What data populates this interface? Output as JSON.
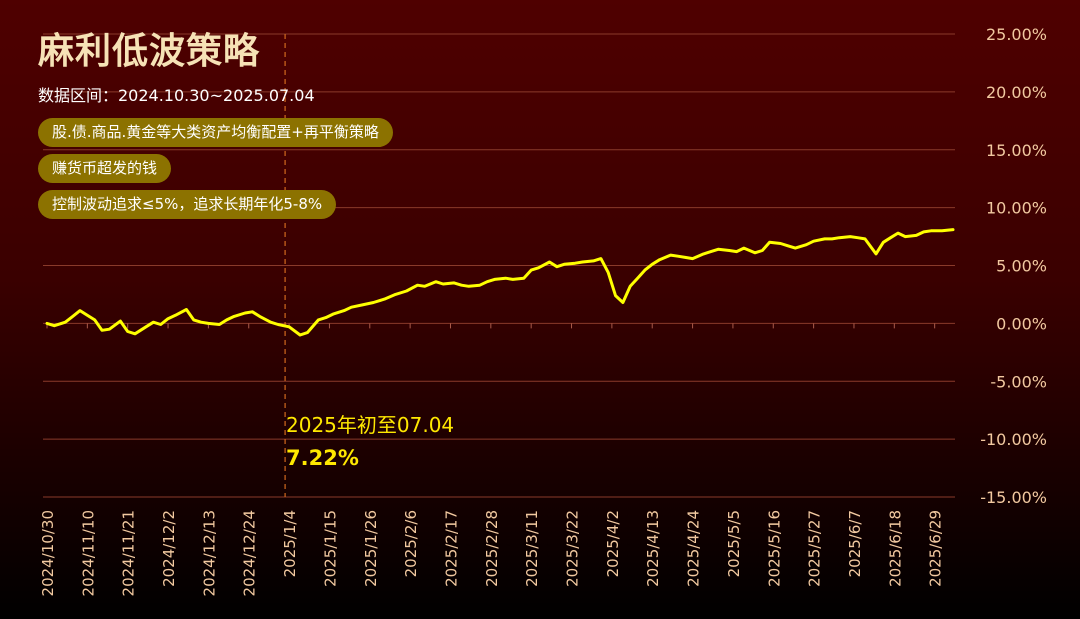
{
  "header": {
    "title": "麻利低波策略",
    "subtitle": "数据区间：2024.10.30~2025.07.04"
  },
  "tags": [
    "股.债.商品.黄金等大类资产均衡配置+再平衡策略",
    "赚货币超发的钱",
    "控制波动追求≤5%，追求长期年化5-8%"
  ],
  "annotation": {
    "label": "2025年初至07.04",
    "value": "7.22%",
    "marker_date": "2025/1/4"
  },
  "colors": {
    "line": "#ffff00",
    "axis_text": "#f2c9a0",
    "grid": "#8a3a2a",
    "annotation_line": "#d2691e",
    "tag_bg": "#8c7200"
  },
  "chart_data": {
    "type": "line",
    "series": [
      {
        "x": [
          "2024/10/30",
          "2024/11/1",
          "2024/11/4",
          "2024/11/6",
          "2024/11/8",
          "2024/11/10",
          "2024/11/12",
          "2024/11/14",
          "2024/11/16",
          "2024/11/19",
          "2024/11/21",
          "2024/11/23",
          "2024/11/26",
          "2024/11/28",
          "2024/11/30",
          "2024/12/2",
          "2024/12/4",
          "2024/12/7",
          "2024/12/9",
          "2024/12/11",
          "2024/12/13",
          "2024/12/16",
          "2024/12/18",
          "2024/12/20",
          "2024/12/23",
          "2024/12/25",
          "2024/12/27",
          "2024/12/30",
          "2025/1/1",
          "2025/1/4",
          "2025/1/7",
          "2025/1/9",
          "2025/1/12",
          "2025/1/14",
          "2025/1/16",
          "2025/1/19",
          "2025/1/21",
          "2025/1/24",
          "2025/1/27",
          "2025/1/30",
          "2025/2/2",
          "2025/2/5",
          "2025/2/8",
          "2025/2/10",
          "2025/2/13",
          "2025/2/15",
          "2025/2/18",
          "2025/2/20",
          "2025/2/22",
          "2025/2/25",
          "2025/2/27",
          "2025/3/1",
          "2025/3/4",
          "2025/3/6",
          "2025/3/9",
          "2025/3/11",
          "2025/3/13",
          "2025/3/16",
          "2025/3/18",
          "2025/3/20",
          "2025/3/23",
          "2025/3/25",
          "2025/3/28",
          "2025/3/30",
          "2025/4/1",
          "2025/4/3",
          "2025/4/5",
          "2025/4/7",
          "2025/4/9",
          "2025/4/11",
          "2025/4/13",
          "2025/4/15",
          "2025/4/18",
          "2025/4/20",
          "2025/4/22",
          "2025/4/24",
          "2025/4/27",
          "2025/4/29",
          "2025/5/1",
          "2025/5/4",
          "2025/5/6",
          "2025/5/8",
          "2025/5/11",
          "2025/5/13",
          "2025/5/15",
          "2025/5/18",
          "2025/5/20",
          "2025/5/22",
          "2025/5/25",
          "2025/5/27",
          "2025/5/30",
          "2025/6/1",
          "2025/6/3",
          "2025/6/6",
          "2025/6/8",
          "2025/6/10",
          "2025/6/13",
          "2025/6/15",
          "2025/6/17",
          "2025/6/19",
          "2025/6/21",
          "2025/6/24",
          "2025/6/26",
          "2025/6/28",
          "2025/7/1",
          "2025/7/4"
        ],
        "values": [
          0.0,
          -0.2,
          0.1,
          0.6,
          1.1,
          0.7,
          0.3,
          -0.6,
          -0.5,
          0.2,
          -0.7,
          -0.9,
          -0.3,
          0.1,
          -0.1,
          0.4,
          0.7,
          1.2,
          0.3,
          0.1,
          0.0,
          -0.1,
          0.3,
          0.6,
          0.9,
          1.0,
          0.6,
          0.1,
          -0.1,
          -0.3,
          -1.0,
          -0.8,
          0.3,
          0.5,
          0.8,
          1.1,
          1.4,
          1.6,
          1.8,
          2.1,
          2.5,
          2.8,
          3.3,
          3.2,
          3.6,
          3.4,
          3.5,
          3.3,
          3.2,
          3.3,
          3.6,
          3.8,
          3.9,
          3.8,
          3.9,
          4.6,
          4.8,
          5.3,
          4.9,
          5.1,
          5.2,
          5.3,
          5.4,
          5.6,
          4.4,
          2.4,
          1.8,
          3.2,
          3.9,
          4.6,
          5.1,
          5.5,
          5.9,
          5.8,
          5.7,
          5.6,
          6.0,
          6.2,
          6.4,
          6.3,
          6.2,
          6.5,
          6.1,
          6.3,
          7.0,
          6.9,
          6.7,
          6.5,
          6.8,
          7.1,
          7.3,
          7.3,
          7.4,
          7.5,
          7.4,
          7.3,
          6.0,
          7.0,
          7.4,
          7.8,
          7.5,
          7.6,
          7.9,
          8.0,
          8.0,
          8.1
        ]
      }
    ],
    "y_ticks": [
      "25.00%",
      "20.00%",
      "15.00%",
      "10.00%",
      "5.00%",
      "0.00%",
      "-5.00%",
      "-10.00%",
      "-15.00%"
    ],
    "x_ticks": [
      "2024/10/30",
      "2024/11/10",
      "2024/11/21",
      "2024/12/2",
      "2024/12/13",
      "2024/12/24",
      "2025/1/4",
      "2025/1/15",
      "2025/1/26",
      "2025/2/6",
      "2025/2/17",
      "2025/2/28",
      "2025/3/11",
      "2025/3/22",
      "2025/4/2",
      "2025/4/13",
      "2025/4/24",
      "2025/5/5",
      "2025/5/16",
      "2025/5/27",
      "2025/6/7",
      "2025/6/18",
      "2025/6/29"
    ],
    "ylim": [
      -15,
      25
    ],
    "grid": true,
    "y_axis_position": "right"
  }
}
